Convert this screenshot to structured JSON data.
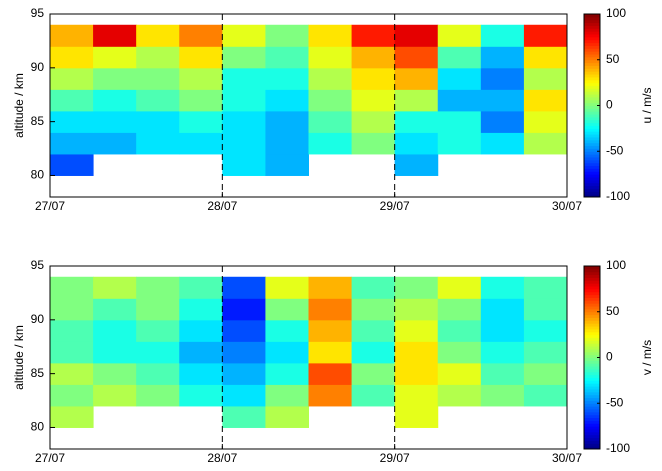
{
  "chart_data": [
    {
      "type": "heatmap",
      "ylabel": "altitude / km",
      "colorbar_label": "u / m/s",
      "colormap": "jet",
      "x": [
        27.125,
        27.375,
        27.625,
        27.875,
        28.125,
        28.375,
        28.625,
        28.875,
        29.125,
        29.375,
        29.625,
        29.875
      ],
      "y": [
        81,
        83,
        85,
        87,
        89,
        91,
        93
      ],
      "z": [
        [
          -60,
          null,
          null,
          null,
          -30,
          -40,
          null,
          null,
          -40,
          null,
          null,
          null
        ],
        [
          -40,
          -40,
          -30,
          -30,
          -30,
          -40,
          -20,
          0,
          -30,
          -20,
          -30,
          10
        ],
        [
          -30,
          -30,
          -30,
          -20,
          -30,
          -40,
          -10,
          10,
          -20,
          -20,
          -50,
          20
        ],
        [
          -10,
          -20,
          -10,
          0,
          -20,
          -30,
          0,
          20,
          10,
          -40,
          -40,
          30
        ],
        [
          10,
          0,
          0,
          10,
          -20,
          -20,
          10,
          30,
          40,
          -30,
          -50,
          10
        ],
        [
          30,
          20,
          10,
          30,
          0,
          -10,
          20,
          40,
          60,
          -10,
          -40,
          30
        ],
        [
          40,
          80,
          30,
          50,
          20,
          0,
          30,
          70,
          80,
          20,
          -20,
          70
        ]
      ],
      "xlim": [
        27,
        30
      ],
      "ylim": [
        78,
        95
      ],
      "xticks": [
        {
          "value": 27,
          "label": "27/07"
        },
        {
          "value": 28,
          "label": "28/07"
        },
        {
          "value": 29,
          "label": "29/07"
        },
        {
          "value": 30,
          "label": "30/07"
        }
      ],
      "yticks": [
        80,
        85,
        90,
        95
      ],
      "clim": [
        -100,
        100
      ],
      "cticks": [
        -100,
        -50,
        0,
        50,
        100
      ]
    },
    {
      "type": "heatmap",
      "ylabel": "altitude / km",
      "colorbar_label": "v / m/s",
      "colormap": "jet",
      "x": [
        27.125,
        27.375,
        27.625,
        27.875,
        28.125,
        28.375,
        28.625,
        28.875,
        29.125,
        29.375,
        29.625,
        29.875
      ],
      "y": [
        81,
        83,
        85,
        87,
        89,
        91,
        93
      ],
      "z": [
        [
          10,
          null,
          null,
          null,
          -10,
          10,
          null,
          null,
          20,
          null,
          null,
          null
        ],
        [
          0,
          10,
          0,
          -20,
          -30,
          0,
          50,
          -10,
          20,
          10,
          0,
          -10
        ],
        [
          10,
          0,
          -10,
          -30,
          -40,
          -20,
          60,
          0,
          30,
          20,
          -10,
          0
        ],
        [
          -10,
          -20,
          -20,
          -40,
          -50,
          -30,
          30,
          -20,
          30,
          0,
          -20,
          -10
        ],
        [
          -10,
          -20,
          -10,
          -30,
          -60,
          -20,
          40,
          -10,
          20,
          -10,
          -30,
          -20
        ],
        [
          0,
          -10,
          0,
          -20,
          -70,
          0,
          50,
          0,
          10,
          0,
          -30,
          -10
        ],
        [
          0,
          10,
          0,
          -10,
          -60,
          20,
          40,
          -10,
          0,
          20,
          -20,
          -10
        ]
      ],
      "xlim": [
        27,
        30
      ],
      "ylim": [
        78,
        95
      ],
      "xticks": [
        {
          "value": 27,
          "label": "27/07"
        },
        {
          "value": 28,
          "label": "28/07"
        },
        {
          "value": 29,
          "label": "29/07"
        },
        {
          "value": 30,
          "label": "30/07"
        }
      ],
      "yticks": [
        80,
        85,
        90,
        95
      ],
      "clim": [
        -100,
        100
      ],
      "cticks": [
        -100,
        -50,
        0,
        50,
        100
      ]
    }
  ]
}
